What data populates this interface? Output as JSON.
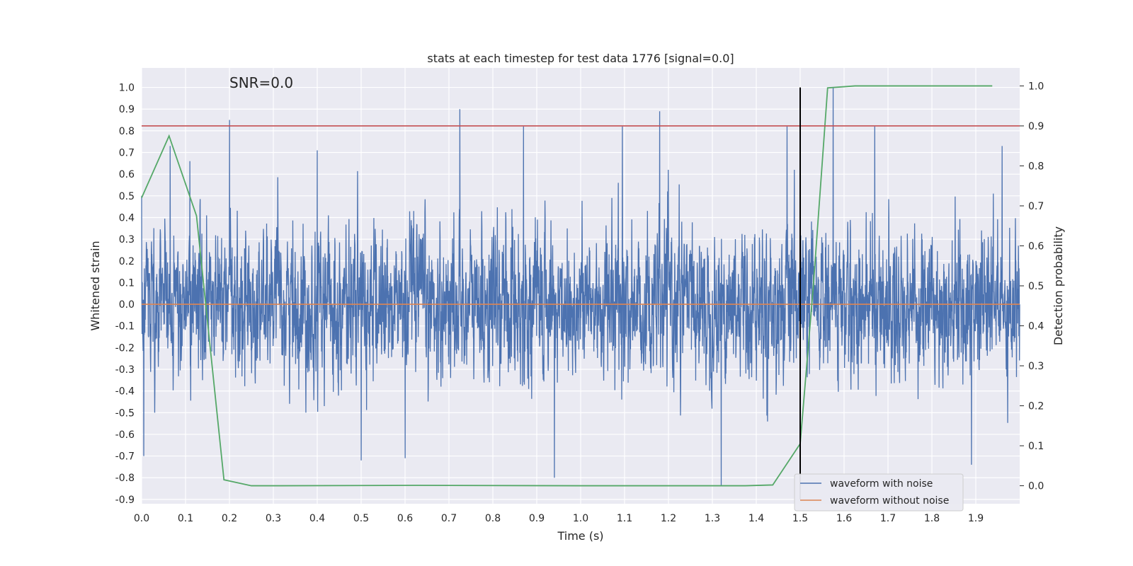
{
  "chart_data": {
    "type": "line",
    "title": "stats at each timestep for test data 1776 [signal=0.0]",
    "xlabel": "Time (s)",
    "ylabel": "Whitened strain",
    "y2label": "Detection probability",
    "annotation": "SNR=0.0",
    "xlim": [
      0.0,
      2.0
    ],
    "ylim": [
      -0.92,
      1.09
    ],
    "y2lim": [
      -0.045,
      1.045
    ],
    "xticks": [
      0.0,
      0.1,
      0.2,
      0.3,
      0.4,
      0.5,
      0.6,
      0.7,
      0.8,
      0.9,
      1.0,
      1.1,
      1.2,
      1.3,
      1.4,
      1.5,
      1.6,
      1.7,
      1.8,
      1.9
    ],
    "yticks": [
      -0.9,
      -0.8,
      -0.7,
      -0.6,
      -0.5,
      -0.4,
      -0.3,
      -0.2,
      -0.1,
      0.0,
      0.1,
      0.2,
      0.3,
      0.4,
      0.5,
      0.6,
      0.7,
      0.8,
      0.9,
      1.0
    ],
    "y2ticks": [
      0.0,
      0.1,
      0.2,
      0.3,
      0.4,
      0.5,
      0.6,
      0.7,
      0.8,
      0.9,
      1.0
    ],
    "grid": true,
    "legend_position": "lower-right",
    "series": [
      {
        "name": "waveform with noise",
        "color": "#4c72b0",
        "axis": "left",
        "noise_sample_rate_hz": 2048,
        "approx_std": 0.27,
        "peaks": [
          {
            "x": 0.0,
            "y": 0.5
          },
          {
            "x": 0.005,
            "y": -0.7
          },
          {
            "x": 0.065,
            "y": 0.73
          },
          {
            "x": 0.11,
            "y": 0.66
          },
          {
            "x": 0.2,
            "y": 0.85
          },
          {
            "x": 0.4,
            "y": 0.71
          },
          {
            "x": 0.5,
            "y": -0.72
          },
          {
            "x": 0.6,
            "y": -0.71
          },
          {
            "x": 0.725,
            "y": 0.9
          },
          {
            "x": 0.87,
            "y": 0.82
          },
          {
            "x": 0.94,
            "y": -0.8
          },
          {
            "x": 1.095,
            "y": 0.82
          },
          {
            "x": 1.18,
            "y": 0.89
          },
          {
            "x": 1.32,
            "y": -0.84
          },
          {
            "x": 1.47,
            "y": 0.82
          },
          {
            "x": 1.575,
            "y": 1.0
          },
          {
            "x": 1.67,
            "y": 0.82
          },
          {
            "x": 1.89,
            "y": -0.74
          },
          {
            "x": 1.96,
            "y": 0.73
          }
        ]
      },
      {
        "name": "waveform without noise",
        "color": "#dd8452",
        "axis": "left",
        "x": [
          0.0,
          2.0
        ],
        "y": [
          0.0,
          0.0
        ]
      },
      {
        "name": "",
        "color": "#55a868",
        "axis": "right",
        "x": [
          0.0,
          0.0625,
          0.125,
          0.1875,
          0.25,
          0.3125,
          0.625,
          1.0,
          1.375,
          1.4375,
          1.5,
          1.53,
          1.5625,
          1.625,
          1.6875,
          1.9375
        ],
        "y": [
          0.72,
          0.875,
          0.675,
          0.015,
          0.0,
          0.0,
          0.001,
          0.0,
          0.0,
          0.002,
          0.105,
          0.5,
          0.995,
          1.0,
          1.0,
          1.0
        ]
      }
    ],
    "threshold_line": {
      "axis": "right",
      "value": 0.9,
      "color": "#c44e52"
    },
    "vertical_line": {
      "x": 1.5,
      "y_from": -0.9,
      "y_to": 1.0,
      "color": "#000000"
    }
  }
}
